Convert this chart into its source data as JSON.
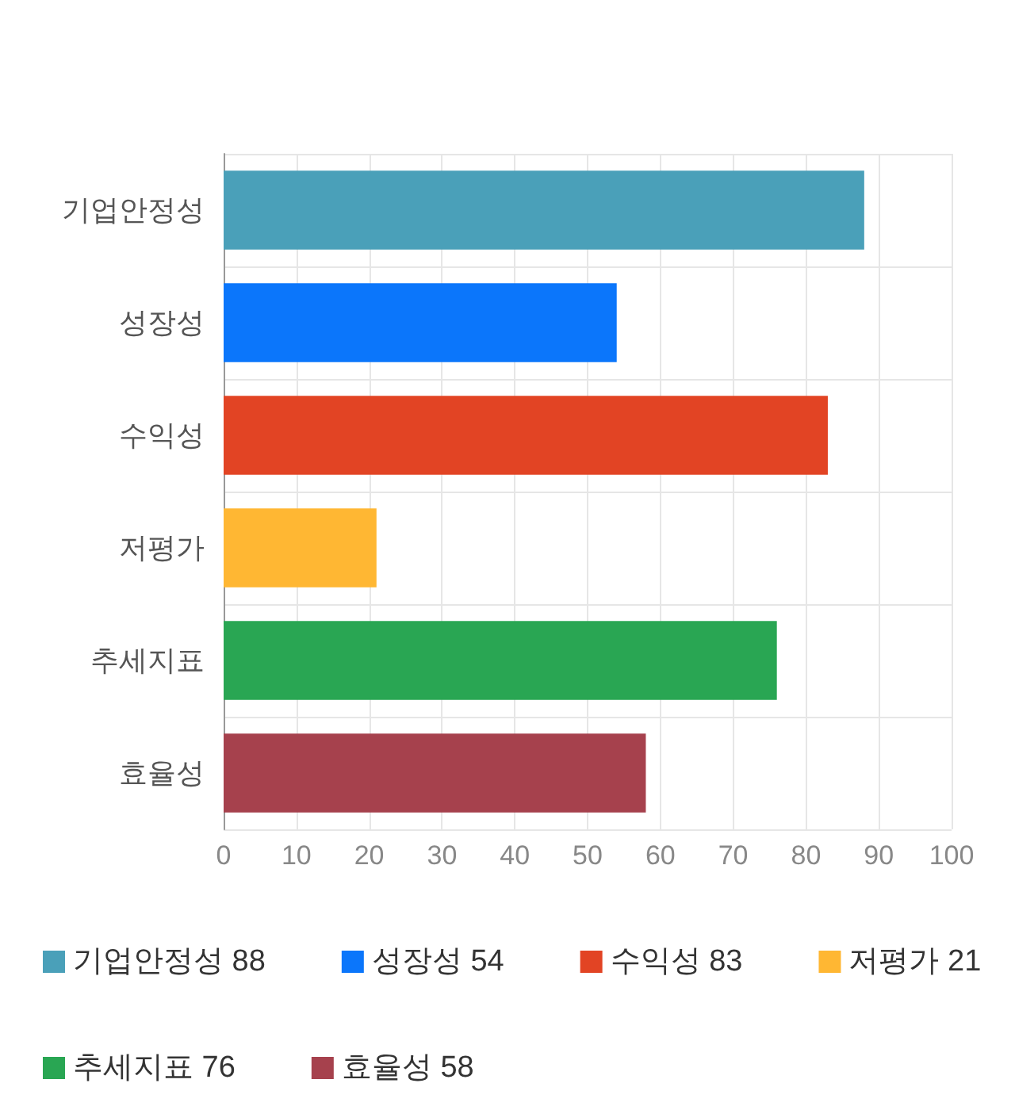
{
  "chart_data": {
    "type": "bar",
    "orientation": "horizontal",
    "stacked": true,
    "categories": [
      "기업안정성",
      "성장성",
      "수익성",
      "저평가",
      "추세지표",
      "효율성"
    ],
    "series": [
      {
        "name": "기업안정성 88",
        "color": "#4aa0b9",
        "values": [
          88,
          null,
          null,
          null,
          null,
          null
        ]
      },
      {
        "name": "성장성 54",
        "color": "#0b76fb",
        "values": [
          null,
          54,
          null,
          null,
          null,
          null
        ]
      },
      {
        "name": "수익성 83",
        "color": "#e24424",
        "values": [
          null,
          null,
          83,
          null,
          null,
          null
        ]
      },
      {
        "name": "저평가 21",
        "color": "#ffb733",
        "values": [
          null,
          null,
          null,
          21,
          null,
          null
        ]
      },
      {
        "name": "추세지표 76",
        "color": "#29a653",
        "values": [
          null,
          null,
          null,
          null,
          76,
          null
        ]
      },
      {
        "name": "효율성 58",
        "color": "#a6414d",
        "values": [
          null,
          null,
          null,
          null,
          null,
          58
        ]
      }
    ],
    "xlim": [
      0,
      100
    ],
    "xticks": [
      0,
      10,
      20,
      30,
      40,
      50,
      60,
      70,
      80,
      90,
      100
    ],
    "grid": true,
    "legend": "bottom"
  }
}
